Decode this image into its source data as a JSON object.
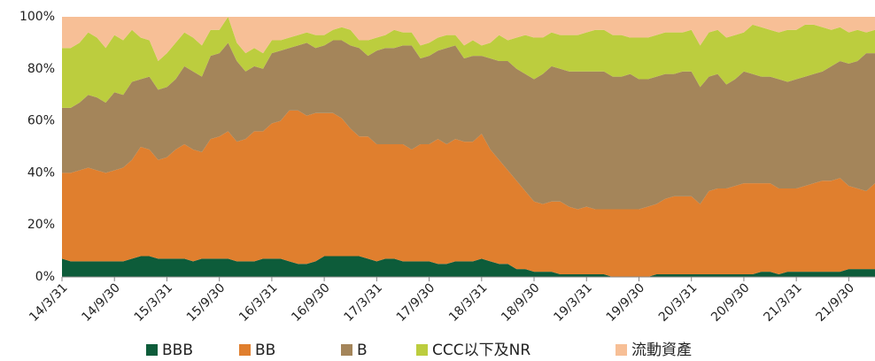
{
  "chart_data": {
    "type": "stacked_area",
    "categories": [
      "14/3/31",
      null,
      null,
      null,
      null,
      null,
      "14/9/30",
      null,
      null,
      null,
      null,
      null,
      "15/3/31",
      null,
      null,
      null,
      null,
      null,
      "15/9/30",
      null,
      null,
      null,
      null,
      null,
      "16/3/31",
      null,
      null,
      null,
      null,
      null,
      "16/9/30",
      null,
      null,
      null,
      null,
      null,
      "17/3/31",
      null,
      null,
      null,
      null,
      null,
      "17/9/30",
      null,
      null,
      null,
      null,
      null,
      "18/3/31",
      null,
      null,
      null,
      null,
      null,
      "18/9/30",
      null,
      null,
      null,
      null,
      null,
      "19/3/31",
      null,
      null,
      null,
      null,
      null,
      "19/9/30",
      null,
      null,
      null,
      null,
      null,
      "20/3/31",
      null,
      null,
      null,
      null,
      null,
      "20/9/30",
      null,
      null,
      null,
      null,
      null,
      "21/3/31",
      null,
      null,
      null,
      null,
      null,
      "21/9/30",
      null,
      null,
      null
    ],
    "series": [
      {
        "name": "BBB",
        "color": "#0d5c3a",
        "values": [
          7,
          6,
          6,
          6,
          6,
          6,
          6,
          6,
          7,
          8,
          8,
          7,
          7,
          7,
          7,
          6,
          7,
          7,
          7,
          7,
          6,
          6,
          6,
          7,
          7,
          7,
          6,
          5,
          5,
          6,
          8,
          8,
          8,
          8,
          8,
          7,
          6,
          7,
          7,
          6,
          6,
          6,
          6,
          5,
          5,
          6,
          6,
          6,
          7,
          6,
          5,
          5,
          3,
          3,
          2,
          2,
          2,
          1,
          1,
          1,
          1,
          1,
          1,
          0,
          0,
          0,
          0,
          0,
          1,
          1,
          1,
          1,
          1,
          1,
          1,
          1,
          1,
          1,
          1,
          1,
          2,
          2,
          1,
          2,
          2,
          2,
          2,
          2,
          2,
          2,
          3,
          3,
          3,
          3
        ]
      },
      {
        "name": "BB",
        "color": "#e07f2e",
        "values": [
          33,
          34,
          35,
          36,
          35,
          34,
          35,
          36,
          38,
          42,
          41,
          38,
          39,
          42,
          44,
          43,
          41,
          46,
          47,
          49,
          46,
          47,
          50,
          49,
          52,
          53,
          58,
          59,
          57,
          57,
          55,
          55,
          53,
          49,
          46,
          47,
          45,
          44,
          44,
          45,
          43,
          45,
          45,
          48,
          46,
          47,
          46,
          46,
          48,
          43,
          40,
          36,
          34,
          30,
          27,
          26,
          27,
          28,
          26,
          25,
          26,
          25,
          25,
          26,
          26,
          26,
          26,
          27,
          27,
          29,
          30,
          30,
          30,
          27,
          32,
          33,
          33,
          34,
          35,
          35,
          34,
          34,
          33,
          32,
          32,
          33,
          34,
          35,
          35,
          36,
          32,
          31,
          30,
          33
        ]
      },
      {
        "name": "B",
        "color": "#a4855a",
        "values": [
          25,
          25,
          26,
          28,
          28,
          27,
          30,
          28,
          30,
          26,
          28,
          27,
          27,
          27,
          30,
          30,
          29,
          32,
          32,
          34,
          31,
          26,
          25,
          24,
          27,
          27,
          24,
          25,
          28,
          25,
          26,
          28,
          30,
          32,
          34,
          31,
          36,
          37,
          37,
          38,
          40,
          33,
          34,
          34,
          37,
          36,
          32,
          33,
          30,
          35,
          38,
          42,
          43,
          45,
          47,
          50,
          52,
          51,
          52,
          53,
          52,
          53,
          53,
          51,
          51,
          52,
          50,
          49,
          49,
          48,
          47,
          48,
          48,
          45,
          44,
          44,
          40,
          41,
          43,
          42,
          41,
          41,
          42,
          41,
          42,
          42,
          42,
          42,
          44,
          45,
          47,
          49,
          53,
          50
        ]
      },
      {
        "name": "CCC以下及NR",
        "color": "#bccd3e",
        "values": [
          23,
          23,
          23,
          24,
          23,
          21,
          22,
          21,
          20,
          16,
          14,
          11,
          13,
          14,
          13,
          13,
          12,
          10,
          9,
          10,
          7,
          7,
          7,
          6,
          5,
          4,
          4,
          4,
          4,
          5,
          4,
          4,
          5,
          6,
          3,
          6,
          5,
          5,
          7,
          5,
          5,
          5,
          5,
          5,
          5,
          4,
          5,
          6,
          4,
          6,
          10,
          8,
          12,
          15,
          16,
          14,
          13,
          13,
          14,
          14,
          15,
          16,
          16,
          16,
          16,
          14,
          16,
          16,
          16,
          16,
          16,
          15,
          16,
          16,
          17,
          17,
          18,
          17,
          15,
          19,
          19,
          18,
          18,
          20,
          19,
          20,
          19,
          17,
          14,
          13,
          12,
          12,
          8,
          9
        ]
      },
      {
        "name": "流動資產",
        "color": "#f7bf96",
        "values": [
          12,
          12,
          10,
          6,
          8,
          12,
          7,
          9,
          5,
          8,
          9,
          17,
          14,
          10,
          6,
          8,
          11,
          5,
          5,
          0,
          10,
          14,
          12,
          14,
          9,
          9,
          8,
          7,
          6,
          7,
          7,
          5,
          4,
          5,
          9,
          9,
          8,
          7,
          5,
          6,
          6,
          11,
          10,
          8,
          7,
          7,
          11,
          9,
          11,
          10,
          7,
          9,
          8,
          7,
          8,
          8,
          6,
          7,
          7,
          7,
          6,
          5,
          5,
          7,
          7,
          8,
          8,
          8,
          7,
          6,
          6,
          6,
          5,
          11,
          6,
          5,
          8,
          7,
          6,
          3,
          4,
          5,
          6,
          5,
          5,
          3,
          3,
          4,
          5,
          4,
          6,
          5,
          6,
          5
        ]
      }
    ],
    "ylim": [
      0,
      100
    ],
    "yticks": [
      {
        "value": 0,
        "label": "0%"
      },
      {
        "value": 20,
        "label": "20%"
      },
      {
        "value": 40,
        "label": "40%"
      },
      {
        "value": 60,
        "label": "60%"
      },
      {
        "value": 80,
        "label": "80%"
      },
      {
        "value": 100,
        "label": "100%"
      }
    ],
    "grid": false,
    "legend": "bottom"
  }
}
